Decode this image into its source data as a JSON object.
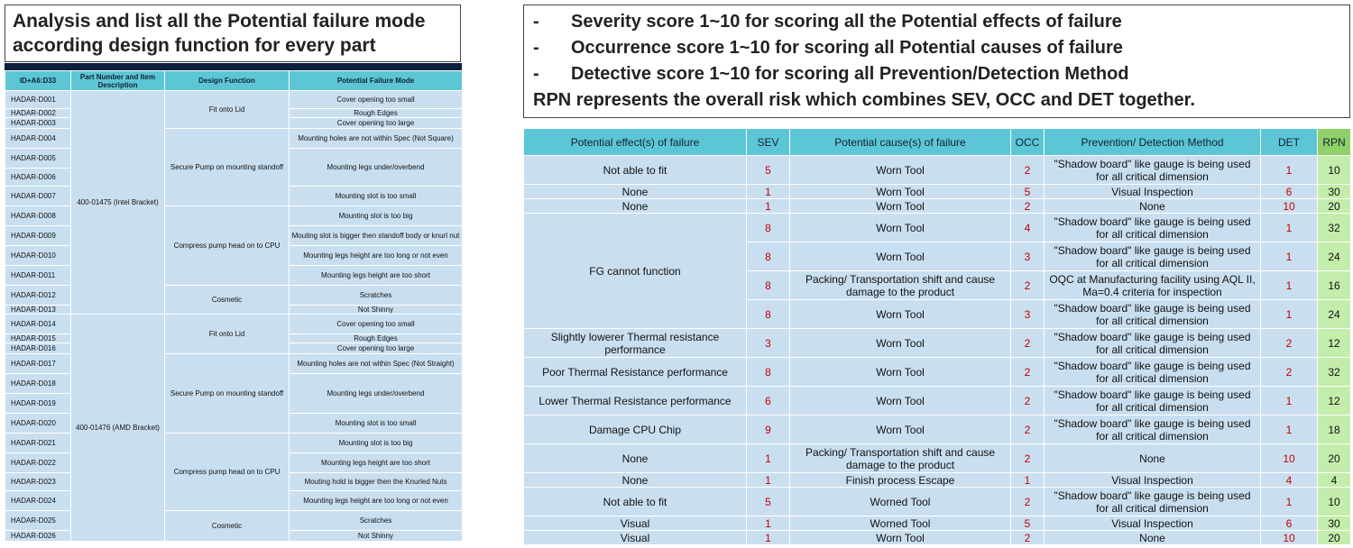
{
  "left": {
    "title": "Analysis and list all the Potential failure mode according design function for every part",
    "header": [
      "ID+A6:D33",
      "Part Number and Item Description",
      "Design Function",
      "Potential Failure Mode"
    ],
    "parts": [
      {
        "name": "400-01475 (Intel Bracket)",
        "functions": [
          {
            "name": "Fit onto Lid",
            "modes": [
              {
                "text": "Cover opening too small",
                "ids": [
                  "HADAR-D001"
                ]
              },
              {
                "text": "Rough Edges",
                "ids": [
                  "HADAR-D002"
                ]
              },
              {
                "text": "Cover opening too large",
                "ids": [
                  "HADAR-D003"
                ]
              }
            ]
          },
          {
            "name": "Secure Pump on mounting standoff",
            "modes": [
              {
                "text": "Mounting holes are not within Spec (Not Square)",
                "ids": [
                  "HADAR-D004"
                ]
              },
              {
                "text": "Mounting legs under/overbend",
                "ids": [
                  "HADAR-D005",
                  "HADAR-D006"
                ]
              },
              {
                "text": "Mounting slot is too small",
                "ids": [
                  "HADAR-D007"
                ]
              }
            ]
          },
          {
            "name": "Compress pump head on to CPU",
            "modes": [
              {
                "text": "Mounting slot is too big",
                "ids": [
                  "HADAR-D008"
                ]
              },
              {
                "text": "Mouting slot is bigger then standoff body or knurl nut",
                "ids": [
                  "HADAR-D009"
                ]
              },
              {
                "text": "Mounting legs height are too long or not even",
                "ids": [
                  "HADAR-D010"
                ]
              },
              {
                "text": "Mounting legs height are too short",
                "ids": [
                  "HADAR-D011"
                ]
              }
            ]
          },
          {
            "name": "Cosmetic",
            "modes": [
              {
                "text": "Scratches",
                "ids": [
                  "HADAR-D012"
                ]
              },
              {
                "text": "Not Shinny",
                "ids": [
                  "HADAR-D013"
                ]
              }
            ]
          }
        ]
      },
      {
        "name": "400-01476 (AMD Bracket)",
        "functions": [
          {
            "name": "Fit onto Lid",
            "modes": [
              {
                "text": "Cover opening too small",
                "ids": [
                  "HADAR-D014"
                ]
              },
              {
                "text": "Rough Edges",
                "ids": [
                  "HADAR-D015"
                ]
              },
              {
                "text": "Cover opening too large",
                "ids": [
                  "HADAR-D016"
                ]
              }
            ]
          },
          {
            "name": "Secure Pump on mounting standoff",
            "modes": [
              {
                "text": "Mounting holes are not within Spec (Not Straight)",
                "ids": [
                  "HADAR-D017"
                ]
              },
              {
                "text": "Mounting legs under/overbend",
                "ids": [
                  "HADAR-D018",
                  "HADAR-D019"
                ]
              },
              {
                "text": "Mounting slot is too small",
                "ids": [
                  "HADAR-D020"
                ]
              }
            ]
          },
          {
            "name": "Compress pump head on to CPU",
            "modes": [
              {
                "text": "Mounting slot is too big",
                "ids": [
                  "HADAR-D021"
                ]
              },
              {
                "text": "Mounting legs height are too short",
                "ids": [
                  "HADAR-D022"
                ]
              },
              {
                "text": "Mouting hold is bigger then the Knurled Nuts",
                "ids": [
                  "HADAR-D023"
                ]
              },
              {
                "text": "Mounting legs height are too long or not even",
                "ids": [
                  "HADAR-D024"
                ]
              }
            ]
          },
          {
            "name": "Cosmetic",
            "modes": [
              {
                "text": "Scratches",
                "ids": [
                  "HADAR-D025"
                ]
              },
              {
                "text": "Not Shinny",
                "ids": [
                  "HADAR-D026"
                ]
              }
            ]
          }
        ]
      }
    ]
  },
  "right": {
    "bullets": [
      {
        "marker": "-",
        "text": "Severity score 1~10 for scoring all the Potential effects of failure"
      },
      {
        "marker": "-",
        "text": "Occurrence score 1~10 for scoring all Potential causes of failure"
      },
      {
        "marker": "-",
        "text": "Detective score 1~10 for scoring all Prevention/Detection Method"
      }
    ],
    "note": "RPN represents the overall risk which combines SEV, OCC and DET together.",
    "header": [
      "Potential effect(s) of failure",
      "SEV",
      "Potential cause(s) of failure",
      "OCC",
      "Prevention/ Detection Method",
      "DET",
      "RPN"
    ],
    "groups": [
      {
        "effect": "Not able to fit",
        "rows": [
          {
            "sev": 5,
            "cause": "Worn Tool",
            "occ": 2,
            "method": "\"Shadow board\" like gauge is being used for all critical dimension",
            "det": 1,
            "rpn": 10
          }
        ]
      },
      {
        "effect": "None",
        "rows": [
          {
            "sev": 1,
            "cause": "Worn Tool",
            "occ": 5,
            "method": "Visual Inspection",
            "det": 6,
            "rpn": 30
          }
        ]
      },
      {
        "effect": "None",
        "rows": [
          {
            "sev": 1,
            "cause": "Worn Tool",
            "occ": 2,
            "method": "None",
            "det": 10,
            "rpn": 20
          }
        ]
      },
      {
        "effect": "FG cannot function",
        "rows": [
          {
            "sev": 8,
            "cause": "Worn Tool",
            "occ": 4,
            "method": "\"Shadow board\" like gauge is being used for all critical dimension",
            "det": 1,
            "rpn": 32
          },
          {
            "sev": 8,
            "cause": "Worn Tool",
            "occ": 3,
            "method": "\"Shadow board\" like gauge is being used for all critical dimension",
            "det": 1,
            "rpn": 24
          },
          {
            "sev": 8,
            "cause": "Packing/ Transportation shift and cause damage to the product",
            "occ": 2,
            "method": "OQC at Manufacturing facility using AQL II, Ma=0.4 criteria for inspection",
            "det": 1,
            "rpn": 16
          },
          {
            "sev": 8,
            "cause": "Worn Tool",
            "occ": 3,
            "method": "\"Shadow board\" like gauge is being used for all critical dimension",
            "det": 1,
            "rpn": 24
          }
        ]
      },
      {
        "effect": "Slightly lowerer Thermal resistance performance",
        "rows": [
          {
            "sev": 3,
            "cause": "Worn Tool",
            "occ": 2,
            "method": "\"Shadow board\" like gauge is being used for all critical dimension",
            "det": 2,
            "rpn": 12
          }
        ]
      },
      {
        "effect": "Poor Thermal Resistance performance",
        "rows": [
          {
            "sev": 8,
            "cause": "Worn Tool",
            "occ": 2,
            "method": "\"Shadow board\" like gauge is being used for all critical dimension",
            "det": 2,
            "rpn": 32
          }
        ]
      },
      {
        "effect": "Lower Thermal Resistance performance",
        "rows": [
          {
            "sev": 6,
            "cause": "Worn Tool",
            "occ": 2,
            "method": "\"Shadow board\" like gauge is being used for all critical dimension",
            "det": 1,
            "rpn": 12
          }
        ]
      },
      {
        "effect": "Damage CPU Chip",
        "rows": [
          {
            "sev": 9,
            "cause": "Worn Tool",
            "occ": 2,
            "method": "\"Shadow board\" like gauge is being used for all critical dimension",
            "det": 1,
            "rpn": 18
          }
        ]
      },
      {
        "effect": "None",
        "rows": [
          {
            "sev": 1,
            "cause": "Packing/ Transportation shift and cause damage to the product",
            "occ": 2,
            "method": "None",
            "det": 10,
            "rpn": 20
          }
        ]
      },
      {
        "effect": "None",
        "rows": [
          {
            "sev": 1,
            "cause": "Finish process Escape",
            "occ": 1,
            "method": "Visual Inspection",
            "det": 4,
            "rpn": 4
          }
        ]
      },
      {
        "effect": "Not able to fit",
        "rows": [
          {
            "sev": 5,
            "cause": "Worned Tool",
            "occ": 2,
            "method": "\"Shadow board\" like gauge is being used for all critical dimension",
            "det": 1,
            "rpn": 10
          }
        ]
      },
      {
        "effect": "Visual",
        "rows": [
          {
            "sev": 1,
            "cause": "Worned Tool",
            "occ": 5,
            "method": "Visual Inspection",
            "det": 6,
            "rpn": 30
          }
        ]
      },
      {
        "effect": "Visual",
        "rows": [
          {
            "sev": 1,
            "cause": "Worn Tool",
            "occ": 2,
            "method": "None",
            "det": 10,
            "rpn": 20
          }
        ]
      }
    ]
  }
}
